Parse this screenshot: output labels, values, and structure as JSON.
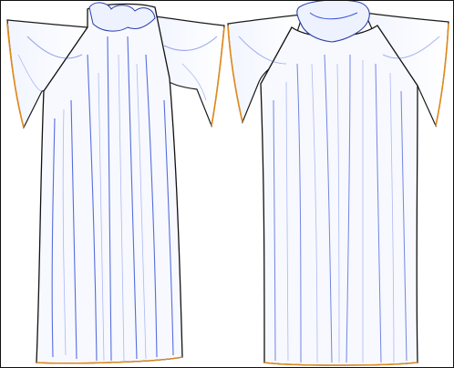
{
  "image": {
    "subject": "two-garment-edge-render",
    "background_color": "#ffffff",
    "colors": {
      "fabric_fill": "#f7f9ff",
      "fold_blue": "#3a55d6",
      "fold_blue_light": "#9aa9ee",
      "outline_dark": "#101010",
      "edge_orange": "#e08a1c"
    },
    "garments": [
      {
        "id": "left-robe",
        "view": "back"
      },
      {
        "id": "right-robe",
        "view": "front"
      }
    ]
  }
}
